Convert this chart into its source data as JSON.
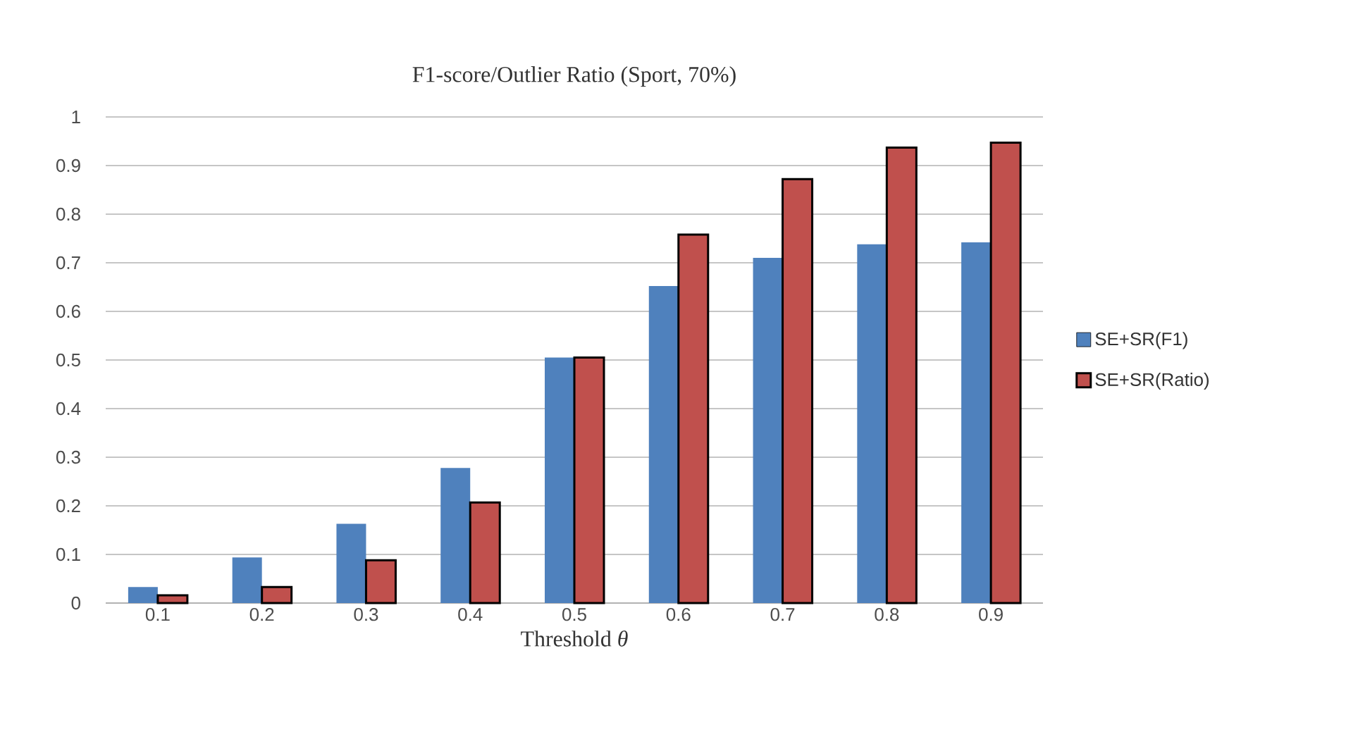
{
  "chart_data": {
    "type": "bar",
    "title": "F1-score/Outlier Ratio (Sport, 70%)",
    "xlabel": "Threshold *θ*",
    "categories": [
      "0.1",
      "0.2",
      "0.3",
      "0.4",
      "0.5",
      "0.6",
      "0.7",
      "0.8",
      "0.9"
    ],
    "series": [
      {
        "name": "SE+SR(F1)",
        "color": "#4f81bd",
        "values": [
          0.033,
          0.094,
          0.163,
          0.278,
          0.505,
          0.652,
          0.71,
          0.738,
          0.742
        ]
      },
      {
        "name": "SE+SR(Ratio)",
        "color": "#c0504d",
        "values": [
          0.016,
          0.033,
          0.088,
          0.207,
          0.505,
          0.758,
          0.872,
          0.937,
          0.947
        ]
      }
    ],
    "ylim": [
      0,
      1
    ],
    "yticks": [
      0,
      0.1,
      0.2,
      0.3,
      0.4,
      0.5,
      0.6,
      0.7,
      0.8,
      0.9,
      1
    ],
    "grid": "y",
    "legend": "right"
  }
}
